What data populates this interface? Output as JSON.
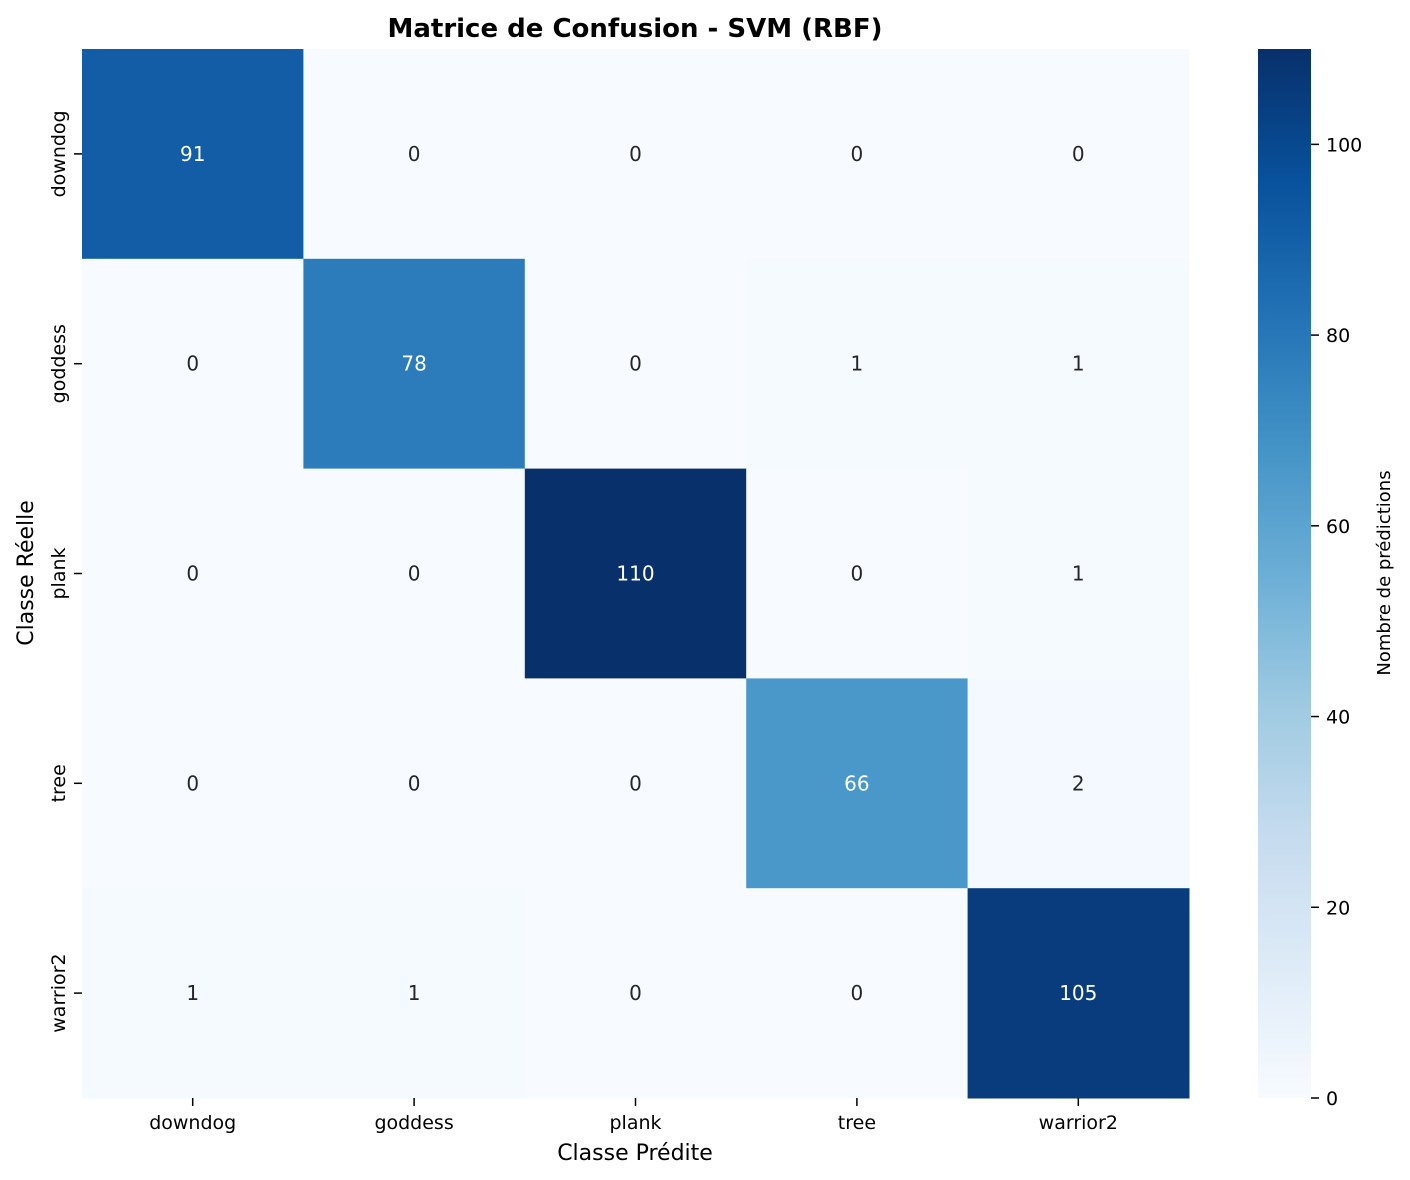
{
  "chart_data": {
    "type": "heatmap",
    "title": "Matrice de Confusion - SVM (RBF)",
    "xlabel": "Classe Prédite",
    "ylabel": "Classe Réelle",
    "x_categories": [
      "downdog",
      "goddess",
      "plank",
      "tree",
      "warrior2"
    ],
    "y_categories": [
      "downdog",
      "goddess",
      "plank",
      "tree",
      "warrior2"
    ],
    "values": [
      [
        91,
        0,
        0,
        0,
        0
      ],
      [
        0,
        78,
        0,
        1,
        1
      ],
      [
        0,
        0,
        110,
        0,
        1
      ],
      [
        0,
        0,
        0,
        66,
        2
      ],
      [
        1,
        1,
        0,
        0,
        105
      ]
    ],
    "colorbar": {
      "label": "Nombre de prédictions",
      "min": 0,
      "max": 110,
      "ticks": [
        "0",
        "20",
        "40",
        "60",
        "80",
        "100"
      ],
      "colormap": "Blues"
    }
  }
}
